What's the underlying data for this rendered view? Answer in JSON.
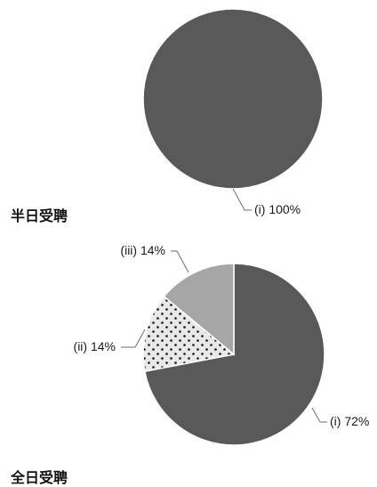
{
  "chart_data": [
    {
      "type": "pie",
      "title": "半日受聘",
      "slices": [
        {
          "label": "(i) 100%",
          "value": 100,
          "color": "#595959",
          "pattern": "solid"
        }
      ]
    },
    {
      "type": "pie",
      "title": "全日受聘",
      "slices": [
        {
          "label": "(i) 72%",
          "value": 72,
          "color": "#595959",
          "pattern": "solid"
        },
        {
          "label": "(ii) 14%",
          "value": 14,
          "color": "#e6e6e6",
          "pattern": "dots"
        },
        {
          "label": "(iii) 14%",
          "value": 14,
          "color": "#a6a6a6",
          "pattern": "solid"
        }
      ]
    }
  ]
}
